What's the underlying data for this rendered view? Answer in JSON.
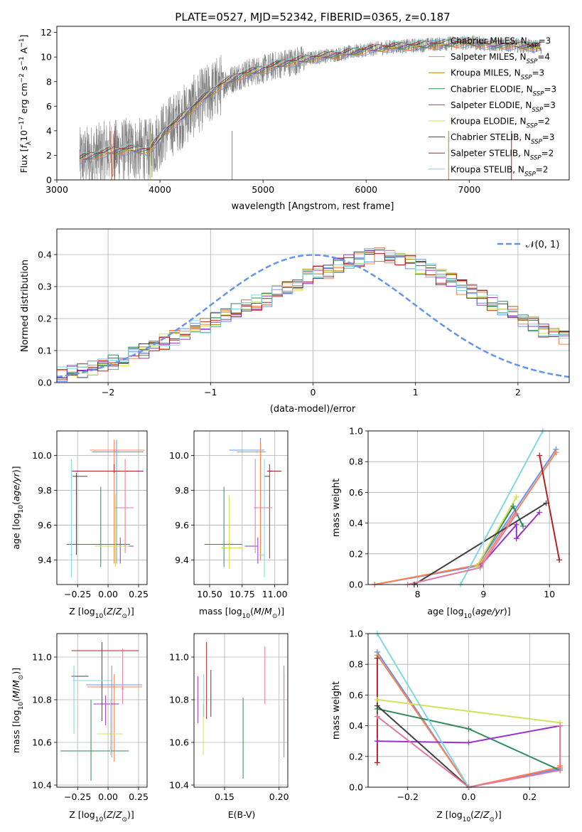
{
  "figure_title": "PLATE=0527, MJD=52342, FIBERID=0365, z=0.187",
  "colors": {
    "chabrier_miles": "#6495ed",
    "salpeter_miles": "#ff7f50",
    "kroupa_miles": "#b8860b",
    "chabrier_elodie": "#2e8b57",
    "salpeter_elodie": "#9932cc",
    "kroupa_elodie": "#d4e157",
    "chabrier_stelib": "#404040",
    "salpeter_stelib": "#b22222",
    "kroupa_stelib": "#7fd8e0",
    "normal_curve": "#6495ed",
    "pink": "#e377a0",
    "observed": "#808080",
    "grid": "#b0b0b0"
  },
  "chart_data": [
    {
      "id": "spectrum",
      "type": "line",
      "title": "PLATE=0527, MJD=52342, FIBERID=0365, z=0.187",
      "xlabel": "wavelength [Angstrom, rest frame]",
      "ylabel": "Flux [fλ10⁻¹⁷ erg cm⁻² s⁻¹ A⁻¹]",
      "xlim": [
        3000,
        7970
      ],
      "ylim": [
        0,
        12.5
      ],
      "xticks": [
        3000,
        4000,
        5000,
        6000,
        7000
      ],
      "yticks": [
        0,
        2,
        4,
        6,
        8,
        10,
        12
      ],
      "grid": false,
      "legend_loc": "upper right",
      "legend": [
        "Chabrier MILES, N_SSP=3",
        "Salpeter MILES, N_SSP=4",
        "Kroupa MILES, N_SSP=3",
        "Chabrier ELODIE, N_SSP=3",
        "Salpeter ELODIE, N_SSP=3",
        "Kroupa ELODIE, N_SSP=2",
        "Chabrier STELIB, N_SSP=3",
        "Salpeter STELIB, N_SSP=2",
        "Kroupa STELIB, N_SSP=2"
      ],
      "continuum_x": [
        3220,
        3500,
        3700,
        3900,
        4050,
        4200,
        4400,
        4600,
        4800,
        5000,
        5200,
        5400,
        5600,
        5800,
        6000,
        6200,
        6400,
        6600,
        6800,
        7000,
        7200,
        7400,
        7700
      ],
      "continuum_y": [
        1.7,
        2.3,
        2.5,
        2.4,
        4.0,
        5.0,
        6.5,
        7.8,
        8.6,
        9.0,
        9.5,
        9.8,
        10.1,
        10.3,
        10.6,
        10.8,
        10.9,
        11.0,
        11.1,
        11.2,
        11.0,
        11.0,
        10.8
      ]
    },
    {
      "id": "residuals",
      "type": "histogram",
      "xlabel": "(data-model)/error",
      "ylabel": "Normed distribution",
      "xlim": [
        -2.5,
        2.5
      ],
      "ylim": [
        0,
        0.48
      ],
      "xticks": [
        -2,
        -1,
        0,
        1,
        2
      ],
      "yticks": [
        0.0,
        0.1,
        0.2,
        0.3,
        0.4
      ],
      "grid": true,
      "legend_loc": "upper right",
      "legend": [
        "𝒩(0, 1)"
      ],
      "bin_width": 0.1,
      "bin_start": -2.5,
      "base_density": [
        0.026,
        0.03,
        0.036,
        0.044,
        0.052,
        0.062,
        0.072,
        0.088,
        0.098,
        0.116,
        0.128,
        0.142,
        0.156,
        0.17,
        0.18,
        0.195,
        0.21,
        0.222,
        0.235,
        0.25,
        0.262,
        0.28,
        0.296,
        0.31,
        0.33,
        0.34,
        0.35,
        0.368,
        0.38,
        0.386,
        0.394,
        0.398,
        0.392,
        0.386,
        0.376,
        0.362,
        0.348,
        0.33,
        0.318,
        0.3,
        0.284,
        0.265,
        0.25,
        0.23,
        0.214,
        0.196,
        0.182,
        0.166,
        0.152,
        0.138,
        0.124,
        0.11,
        0.098,
        0.09,
        0.08,
        0.072,
        0.066,
        0.06,
        0.056,
        0.05
      ]
    },
    {
      "id": "age_vs_z",
      "type": "scatter",
      "xlabel": "Z [log₁₀(Z/Z☉)]",
      "ylabel": "age  [log₁₀(age/yr)]",
      "xlim": [
        -0.42,
        0.32
      ],
      "ylim": [
        9.26,
        10.14
      ],
      "xticks": [
        -0.25,
        0.0,
        0.25
      ],
      "yticks": [
        9.4,
        9.6,
        9.8,
        10.0
      ],
      "grid": true,
      "points": [
        {
          "model": "chabrier_miles",
          "x": 0.07,
          "y": 10.02,
          "xerr": [
            0.2,
            0.22
          ],
          "yerr": [
            0.64,
            0.07
          ]
        },
        {
          "model": "salpeter_miles",
          "x": 0.05,
          "y": 10.03,
          "xerr": [
            0.2,
            0.25
          ],
          "yerr": [
            0.65,
            0.06
          ]
        },
        {
          "model": "chabrier_elodie",
          "x": -0.06,
          "y": 9.49,
          "xerr": [
            0.28,
            0.24
          ],
          "yerr": [
            0.13,
            0.33
          ]
        },
        {
          "model": "salpeter_elodie",
          "x": 0.1,
          "y": 9.48,
          "xerr": [
            0.09,
            0.11
          ],
          "yerr": [
            0.1,
            0.05
          ]
        },
        {
          "model": "kroupa_elodie",
          "x": 0.06,
          "y": 9.48,
          "xerr": [
            0.17,
            0.11
          ],
          "yerr": [
            0.12,
            0.3
          ]
        },
        {
          "model": "chabrier_stelib",
          "x": -0.26,
          "y": 9.88,
          "xerr": [
            0.03,
            0.09
          ],
          "yerr": [
            0.45,
            0.02
          ]
        },
        {
          "model": "salpeter_stelib",
          "x": 0.05,
          "y": 9.91,
          "xerr": [
            0.35,
            0.24
          ],
          "yerr": [
            0.01,
            0.04
          ]
        },
        {
          "model": "kroupa_stelib",
          "x": -0.3,
          "y": 9.43,
          "xerr": [
            0.01,
            0.01
          ],
          "yerr": [
            0.13,
            0.55
          ]
        },
        {
          "model": "pink",
          "x": 0.14,
          "y": 9.7,
          "xerr": [
            0.08,
            0.07
          ],
          "yerr": [
            0.26,
            0.28
          ]
        }
      ]
    },
    {
      "id": "age_vs_mass",
      "type": "scatter",
      "xlabel": "mass [log₁₀(M/M☉)]",
      "ylabel": "",
      "xlim": [
        10.38,
        11.1
      ],
      "ylim": [
        9.26,
        10.14
      ],
      "xticks": [
        10.5,
        10.75,
        11.0
      ],
      "yticks": [
        9.4,
        9.6,
        9.8,
        10.0
      ],
      "grid": true,
      "points": [
        {
          "model": "chabrier_miles",
          "x": 10.89,
          "y": 10.03,
          "xerr": [
            0.24,
            0.03
          ],
          "yerr": [
            0.62,
            0.07
          ]
        },
        {
          "model": "salpeter_miles",
          "x": 10.89,
          "y": 10.02,
          "xerr": [
            0.18,
            0.04
          ],
          "yerr": [
            0.62,
            0.06
          ]
        },
        {
          "model": "chabrier_elodie",
          "x": 10.61,
          "y": 9.49,
          "xerr": [
            0.15,
            0.14
          ],
          "yerr": [
            0.13,
            0.33
          ]
        },
        {
          "model": "salpeter_elodie",
          "x": 10.87,
          "y": 9.48,
          "xerr": [
            0.1,
            0.0
          ],
          "yerr": [
            0.1,
            0.05
          ]
        },
        {
          "model": "kroupa_elodie",
          "x": 10.65,
          "y": 9.47,
          "xerr": [
            0.06,
            0.1
          ],
          "yerr": [
            0.12,
            0.3
          ]
        },
        {
          "model": "chabrier_stelib",
          "x": 10.92,
          "y": 9.88,
          "xerr": [
            0.0,
            0.04
          ],
          "yerr": [
            0.45,
            0.02
          ]
        },
        {
          "model": "salpeter_stelib",
          "x": 10.96,
          "y": 9.91,
          "xerr": [
            0.02,
            0.09
          ],
          "yerr": [
            0.5,
            0.04
          ]
        },
        {
          "model": "kroupa_stelib",
          "x": 10.92,
          "y": 9.43,
          "xerr": [
            0.05,
            0.0
          ],
          "yerr": [
            0.13,
            0.55
          ]
        },
        {
          "model": "pink",
          "x": 10.85,
          "y": 9.7,
          "xerr": [
            0.01,
            0.13
          ],
          "yerr": [
            0.26,
            0.28
          ]
        }
      ]
    },
    {
      "id": "massweight_vs_age",
      "type": "line",
      "xlabel": "age  [log₁₀(age/yr)]",
      "ylabel": "mass weight",
      "xlim": [
        7.25,
        10.3
      ],
      "ylim": [
        0,
        1
      ],
      "xticks": [
        8,
        9,
        10
      ],
      "yticks": [
        0.0,
        0.2,
        0.4,
        0.6,
        0.8,
        1.0
      ],
      "grid": true,
      "series": [
        {
          "model": "chabrier_miles",
          "x": [
            7.35,
            8.9,
            10.1
          ],
          "y": [
            0.0,
            0.12,
            0.88
          ]
        },
        {
          "model": "salpeter_miles",
          "x": [
            7.35,
            8.95,
            10.1
          ],
          "y": [
            0.0,
            0.13,
            0.86
          ]
        },
        {
          "model": "chabrier_elodie",
          "x": [
            8.9,
            9.45,
            9.6
          ],
          "y": [
            0.12,
            0.51,
            0.38
          ]
        },
        {
          "model": "salpeter_elodie",
          "x": [
            8.95,
            9.5,
            9.5,
            9.85
          ],
          "y": [
            0.12,
            0.39,
            0.3,
            0.47
          ]
        },
        {
          "model": "kroupa_elodie",
          "x": [
            8.9,
            9.5
          ],
          "y": [
            0.12,
            0.57
          ]
        },
        {
          "model": "chabrier_stelib",
          "x": [
            7.95,
            9.95
          ],
          "y": [
            0.0,
            0.53
          ]
        },
        {
          "model": "salpeter_stelib",
          "x": [
            9.85,
            10.15
          ],
          "y": [
            0.84,
            0.16
          ]
        },
        {
          "model": "kroupa_stelib",
          "x": [
            8.65,
            9.9
          ],
          "y": [
            0.0,
            1.0
          ]
        },
        {
          "model": "pink",
          "x": [
            7.85,
            8.95,
            9.5
          ],
          "y": [
            0.0,
            0.11,
            0.46
          ]
        }
      ]
    },
    {
      "id": "mass_vs_z",
      "type": "scatter",
      "xlabel": "Z [log₁₀(Z/Z☉)]",
      "ylabel": "mass [log₁₀(M/M☉)]",
      "xlim": [
        -0.42,
        0.32
      ],
      "ylim": [
        10.39,
        11.11
      ],
      "xticks": [
        -0.25,
        0.0,
        0.25
      ],
      "yticks": [
        10.4,
        10.6,
        10.8,
        11.0
      ],
      "grid": true,
      "points": [
        {
          "model": "chabrier_miles",
          "x": 0.03,
          "y": 10.87,
          "xerr": [
            0.21,
            0.25
          ],
          "yerr": [
            0.34,
            0.09
          ]
        },
        {
          "model": "salpeter_miles",
          "x": 0.05,
          "y": 10.86,
          "xerr": [
            0.22,
            0.23
          ],
          "yerr": [
            0.35,
            0.06
          ]
        },
        {
          "model": "chabrier_elodie",
          "x": -0.14,
          "y": 10.56,
          "xerr": [
            0.25,
            0.31
          ],
          "yerr": [
            0.14,
            0.24
          ]
        },
        {
          "model": "salpeter_elodie",
          "x": -0.02,
          "y": 10.78,
          "xerr": [
            0.1,
            0.11
          ],
          "yerr": [
            0.1,
            0.04
          ]
        },
        {
          "model": "kroupa_elodie",
          "x": 0.02,
          "y": 10.64,
          "xerr": [
            0.11,
            0.1
          ],
          "yerr": [
            0.1,
            0.16
          ]
        },
        {
          "model": "chabrier_stelib",
          "x": -0.28,
          "y": 10.91,
          "xerr": [
            0.02,
            0.12
          ],
          "yerr": [
            0.02,
            0.03
          ]
        },
        {
          "model": "salpeter_stelib",
          "x": -0.05,
          "y": 11.03,
          "xerr": [
            0.25,
            0.3
          ],
          "yerr": [
            0.33,
            0.04
          ]
        },
        {
          "model": "kroupa_stelib",
          "x": -0.28,
          "y": 10.89,
          "xerr": [
            0.01,
            0.31
          ],
          "yerr": [
            0.25,
            0.07
          ]
        },
        {
          "model": "pink",
          "x": 0.12,
          "y": 10.85,
          "xerr": [
            0.01,
            0.01
          ],
          "yerr": [
            0.07,
            0.19
          ]
        }
      ]
    },
    {
      "id": "mass_vs_ebv",
      "type": "scatter",
      "xlabel": "E(B-V)",
      "ylabel": "",
      "xlim": [
        0.122,
        0.208
      ],
      "ylim": [
        10.39,
        11.11
      ],
      "xticks": [
        0.15,
        0.2
      ],
      "yticks": [
        10.4,
        10.6,
        10.8,
        11.0
      ],
      "grid": true,
      "points": [
        {
          "model": "chabrier_miles",
          "x": 0.2045,
          "y": 10.75,
          "yerr": [
            0.22,
            0.21
          ]
        },
        {
          "model": "salpeter_miles",
          "x": 0.2045,
          "y": 10.73,
          "yerr": [
            0.15,
            0.19
          ]
        },
        {
          "model": "chabrier_elodie",
          "x": 0.167,
          "y": 10.63,
          "yerr": [
            0.2,
            0.18
          ]
        },
        {
          "model": "salpeter_elodie",
          "x": 0.1255,
          "y": 10.8,
          "yerr": [
            0.11,
            0.11
          ]
        },
        {
          "model": "kroupa_elodie",
          "x": 0.1305,
          "y": 10.66,
          "yerr": [
            0.12,
            0.12
          ]
        },
        {
          "model": "chabrier_stelib",
          "x": 0.1375,
          "y": 10.84,
          "yerr": [
            0.12,
            0.1
          ]
        },
        {
          "model": "salpeter_stelib",
          "x": 0.1335,
          "y": 10.92,
          "yerr": [
            0.21,
            0.15
          ]
        },
        {
          "model": "kroupa_stelib",
          "x": 0.131,
          "y": 10.84,
          "yerr": [
            0.12,
            0.08
          ]
        },
        {
          "model": "pink",
          "x": 0.187,
          "y": 10.92,
          "yerr": [
            0.14,
            0.13
          ]
        }
      ]
    },
    {
      "id": "massweight_vs_z",
      "type": "line",
      "xlabel": "Z [log₁₀(Z/Z☉)]",
      "ylabel": "mass weight",
      "xlim": [
        -0.33,
        0.33
      ],
      "ylim": [
        0,
        1
      ],
      "xticks": [
        -0.2,
        0.0,
        0.2
      ],
      "yticks": [
        0.0,
        0.2,
        0.4,
        0.6,
        0.8,
        1.0
      ],
      "grid": true,
      "series": [
        {
          "model": "chabrier_miles",
          "x": [
            -0.3,
            0.0,
            0.3
          ],
          "y": [
            0.88,
            0.0,
            0.12
          ]
        },
        {
          "model": "salpeter_miles",
          "x": [
            -0.3,
            0.0,
            0.3,
            0.3
          ],
          "y": [
            0.86,
            0.0,
            0.13,
            0.14
          ]
        },
        {
          "model": "chabrier_elodie",
          "x": [
            -0.3,
            0.0,
            0.3
          ],
          "y": [
            0.51,
            0.38,
            0.11
          ]
        },
        {
          "model": "salpeter_elodie",
          "x": [
            -0.3,
            0.0,
            0.3
          ],
          "y": [
            0.3,
            0.29,
            0.4
          ]
        },
        {
          "model": "kroupa_elodie",
          "x": [
            -0.3,
            0.3
          ],
          "y": [
            0.57,
            0.42
          ]
        },
        {
          "model": "chabrier_stelib",
          "x": [
            -0.3,
            0.0
          ],
          "y": [
            0.53,
            0.0
          ]
        },
        {
          "model": "salpeter_stelib",
          "x": [
            -0.3,
            -0.3
          ],
          "y": [
            0.16,
            0.84
          ]
        },
        {
          "model": "kroupa_stelib",
          "x": [
            -0.3,
            0.0
          ],
          "y": [
            1.0,
            0.0
          ]
        },
        {
          "model": "pink",
          "x": [
            -0.3,
            0.0,
            0.3,
            0.3
          ],
          "y": [
            0.46,
            0.0,
            0.11,
            0.4
          ]
        }
      ]
    }
  ]
}
